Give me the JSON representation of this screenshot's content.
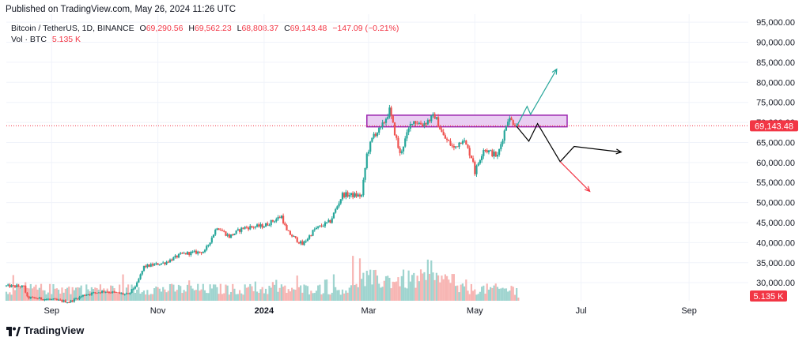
{
  "header": {
    "published": "Published on TradingView.com, May 26, 2024 11:26 UTC"
  },
  "legend": {
    "symbol": "Bitcoin / TetherUS, 1D, BINANCE",
    "open_label": "O",
    "open": "69,290.56",
    "high_label": "H",
    "high": "69,562.23",
    "low_label": "L",
    "low": "68,808.37",
    "close_label": "C",
    "close": "69,143.48",
    "change": "−147.09 (−0.21%)",
    "vol_label": "Vol · BTC",
    "vol_value": "5.135 K"
  },
  "brand": {
    "name": "TradingView"
  },
  "colors": {
    "up": "#26a69a",
    "down": "#ef5350",
    "up_vol": "#9fd4cf",
    "down_vol": "#f7b5b3",
    "zone_fill": "#e6c6f0",
    "zone_stroke": "#9c27b0",
    "price_tag": "#f23645",
    "path_up": "#26a69a",
    "path_down": "#f23645",
    "path_mid": "#000000"
  },
  "chart_data": {
    "type": "candlestick",
    "symbol": "BTCUSDT",
    "interval": "1D",
    "exchange": "BINANCE",
    "y_ticks": [
      30000,
      35000,
      40000,
      45000,
      50000,
      55000,
      60000,
      65000,
      70000,
      75000,
      80000,
      85000,
      90000,
      95000
    ],
    "y_tick_labels": [
      "30,000.00",
      "35,000.00",
      "40,000.00",
      "45,000.00",
      "50,000.00",
      "55,000.00",
      "60,000.00",
      "65,000.00",
      "70,000.00",
      "75,000.00",
      "80,000.00",
      "85,000.00",
      "90,000.00",
      "95,000.00"
    ],
    "ylim": [
      25500,
      97000
    ],
    "x_range": [
      "2023-08-06",
      "2024-10-05"
    ],
    "x_ticks": [
      {
        "date": "2023-09-01",
        "label": "Sep",
        "bold": false
      },
      {
        "date": "2023-11-01",
        "label": "Nov",
        "bold": false
      },
      {
        "date": "2024-01-01",
        "label": "2024",
        "bold": true
      },
      {
        "date": "2024-03-01",
        "label": "Mar",
        "bold": false
      },
      {
        "date": "2024-05-01",
        "label": "May",
        "bold": false
      },
      {
        "date": "2024-07-01",
        "label": "Jul",
        "bold": false
      },
      {
        "date": "2024-09-01",
        "label": "Sep",
        "bold": false
      }
    ],
    "start_date": "2023-08-06",
    "price_anchors": [
      [
        "2023-08-06",
        29200
      ],
      [
        "2023-08-16",
        29000
      ],
      [
        "2023-08-18",
        26300
      ],
      [
        "2023-09-01",
        25800
      ],
      [
        "2023-09-11",
        25200
      ],
      [
        "2023-09-20",
        27000
      ],
      [
        "2023-10-01",
        27900
      ],
      [
        "2023-10-15",
        27000
      ],
      [
        "2023-10-20",
        29700
      ],
      [
        "2023-10-24",
        34000
      ],
      [
        "2023-11-05",
        35000
      ],
      [
        "2023-11-15",
        37200
      ],
      [
        "2023-11-28",
        37800
      ],
      [
        "2023-12-05",
        44000
      ],
      [
        "2023-12-12",
        41500
      ],
      [
        "2023-12-20",
        43700
      ],
      [
        "2024-01-01",
        44200
      ],
      [
        "2024-01-11",
        46600
      ],
      [
        "2024-01-14",
        42800
      ],
      [
        "2024-01-23",
        39500
      ],
      [
        "2024-01-30",
        43300
      ],
      [
        "2024-02-08",
        45300
      ],
      [
        "2024-02-15",
        52000
      ],
      [
        "2024-02-26",
        51700
      ],
      [
        "2024-02-29",
        62000
      ],
      [
        "2024-03-04",
        67000
      ],
      [
        "2024-03-08",
        68300
      ],
      [
        "2024-03-13",
        73000
      ],
      [
        "2024-03-19",
        62000
      ],
      [
        "2024-03-26",
        70500
      ],
      [
        "2024-04-01",
        69500
      ],
      [
        "2024-04-08",
        71600
      ],
      [
        "2024-04-13",
        66500
      ],
      [
        "2024-04-19",
        63500
      ],
      [
        "2024-04-24",
        66000
      ],
      [
        "2024-04-30",
        60500
      ],
      [
        "2024-05-01",
        57500
      ],
      [
        "2024-05-06",
        63500
      ],
      [
        "2024-05-14",
        61500
      ],
      [
        "2024-05-20",
        71000
      ],
      [
        "2024-05-26",
        69143
      ]
    ],
    "candle_count": 295,
    "last_price": 69143.48,
    "last_price_label": "69,143.48",
    "last_volume": 5135,
    "last_volume_label": "5.135 K",
    "resistance_zone": {
      "start": "2024-02-29",
      "end": "2024-06-23",
      "low": 68900,
      "high": 71800
    },
    "projections": [
      {
        "name": "",
        "color_key": "path_up",
        "points": [
          [
            "2024-05-25",
            69000
          ],
          [
            "2024-05-31",
            74000
          ],
          [
            "2024-06-02",
            72000
          ],
          [
            "2024-06-17",
            83300
          ]
        ]
      },
      {
        "name": "",
        "color_key": "path_mid",
        "points": [
          [
            "2024-05-25",
            69000
          ],
          [
            "2024-06-01",
            65300
          ],
          [
            "2024-06-06",
            69700
          ],
          [
            "2024-06-19",
            60200
          ],
          [
            "2024-06-27",
            64000
          ],
          [
            "2024-07-24",
            62600
          ]
        ]
      },
      {
        "name": "",
        "color_key": "path_down",
        "points": [
          [
            "2024-06-19",
            60200
          ],
          [
            "2024-07-06",
            52800
          ]
        ]
      }
    ]
  }
}
